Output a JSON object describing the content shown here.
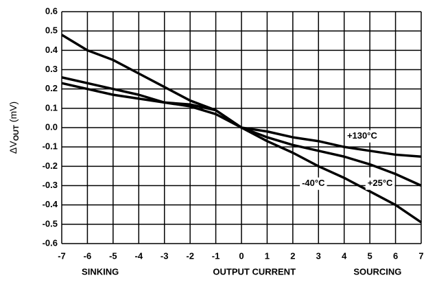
{
  "chart_data": {
    "type": "line",
    "ylabel": {
      "main": "ΔV",
      "sub": "OUT",
      "unit": "(mV)"
    },
    "x_sections": [
      "SINKING",
      "OUTPUT CURRENT",
      "SOURCING"
    ],
    "x": [
      -7,
      -6,
      -5,
      -4,
      -3,
      -2,
      -1,
      0,
      1,
      2,
      3,
      4,
      5,
      6,
      7
    ],
    "series": [
      {
        "name": "-40°C",
        "color": "#000000",
        "values": [
          0.48,
          0.4,
          0.35,
          0.28,
          0.21,
          0.14,
          0.09,
          0,
          -0.07,
          -0.13,
          -0.2,
          -0.26,
          -0.33,
          -0.4,
          -0.49
        ]
      },
      {
        "name": "+25°C",
        "color": "#000000",
        "values": [
          0.26,
          0.23,
          0.2,
          0.17,
          0.13,
          0.12,
          0.09,
          0,
          -0.05,
          -0.09,
          -0.12,
          -0.15,
          -0.19,
          -0.24,
          -0.3
        ]
      },
      {
        "name": "+130°C",
        "color": "#000000",
        "values": [
          0.23,
          0.2,
          0.17,
          0.15,
          0.13,
          0.11,
          0.07,
          0,
          -0.02,
          -0.05,
          -0.07,
          -0.1,
          -0.12,
          -0.14,
          -0.15
        ]
      }
    ],
    "xlim": [
      -7,
      7
    ],
    "xticks": [
      -7,
      -6,
      -5,
      -4,
      -3,
      -2,
      -1,
      0,
      1,
      2,
      3,
      4,
      5,
      6,
      7
    ],
    "ylim": [
      -0.6,
      0.6
    ],
    "yticks": [
      0.6,
      0.5,
      0.4,
      0.3,
      0.2,
      0.1,
      {
        "value": 0,
        "label": "0.0"
      },
      -0.1,
      -0.2,
      -0.3,
      -0.4,
      -0.5,
      -0.6
    ],
    "grid": true
  }
}
